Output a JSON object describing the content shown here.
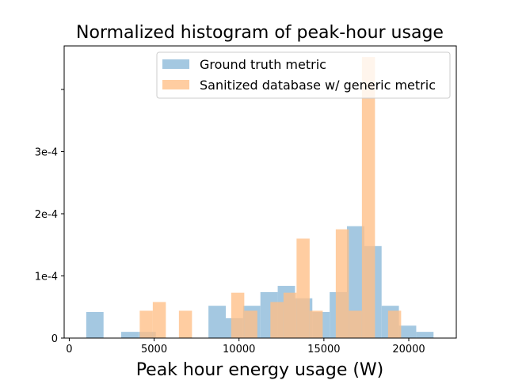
{
  "chart_data": {
    "type": "bar",
    "title": "Normalized histogram of peak-hour usage",
    "xlabel": "Peak hour energy usage (W)",
    "ylabel": "",
    "xlim": [
      -300,
      22800
    ],
    "ylim": [
      0,
      0.00047
    ],
    "xticks": [
      0,
      5000,
      10000,
      15000,
      20000
    ],
    "xtick_labels": [
      "0",
      "5000",
      "10000",
      "15000",
      "20000"
    ],
    "yticks": [
      0,
      0.0001,
      0.0002,
      0.0003,
      0.0004
    ],
    "ytick_labels": [
      "0",
      "1e-4",
      "2e-4",
      "3e-4",
      ""
    ],
    "legend": {
      "position": "upper-right",
      "entries": [
        "Ground truth metric",
        "Sanitized database w/ generic metric"
      ]
    },
    "series": [
      {
        "name": "Ground truth metric",
        "color": "#a4c8e1",
        "opacity": 1,
        "bins": [
          {
            "x0": 1000,
            "x1": 2020,
            "value": 4.2e-05
          },
          {
            "x0": 3060,
            "x1": 4080,
            "value": 1e-05
          },
          {
            "x0": 4080,
            "x1": 5100,
            "value": 1e-05
          },
          {
            "x0": 8200,
            "x1": 9220,
            "value": 5.2e-05
          },
          {
            "x0": 9220,
            "x1": 10240,
            "value": 3.2e-05
          },
          {
            "x0": 10240,
            "x1": 11260,
            "value": 5.2e-05
          },
          {
            "x0": 11260,
            "x1": 12280,
            "value": 7.4e-05
          },
          {
            "x0": 12280,
            "x1": 13300,
            "value": 8.4e-05
          },
          {
            "x0": 13300,
            "x1": 14320,
            "value": 6.4e-05
          },
          {
            "x0": 14320,
            "x1": 15340,
            "value": 4.2e-05
          },
          {
            "x0": 15340,
            "x1": 16360,
            "value": 7.4e-05
          },
          {
            "x0": 16360,
            "x1": 17380,
            "value": 0.00018
          },
          {
            "x0": 17380,
            "x1": 18400,
            "value": 0.000148
          },
          {
            "x0": 18400,
            "x1": 19420,
            "value": 5.2e-05
          },
          {
            "x0": 19420,
            "x1": 20440,
            "value": 2e-05
          },
          {
            "x0": 20440,
            "x1": 21460,
            "value": 1e-05
          }
        ]
      },
      {
        "name": "Sanitized database w/ generic metric",
        "color": "#ffbf86",
        "opacity": 0.78,
        "bins": [
          {
            "x0": 4150,
            "x1": 4920,
            "value": 4.4e-05
          },
          {
            "x0": 4920,
            "x1": 5690,
            "value": 5.8e-05
          },
          {
            "x0": 6460,
            "x1": 7230,
            "value": 4.4e-05
          },
          {
            "x0": 9540,
            "x1": 10310,
            "value": 7.3e-05
          },
          {
            "x0": 10310,
            "x1": 11080,
            "value": 4.4e-05
          },
          {
            "x0": 11850,
            "x1": 12620,
            "value": 5.8e-05
          },
          {
            "x0": 12620,
            "x1": 13390,
            "value": 7.3e-05
          },
          {
            "x0": 13390,
            "x1": 14160,
            "value": 0.00016
          },
          {
            "x0": 14160,
            "x1": 14930,
            "value": 4.4e-05
          },
          {
            "x0": 15700,
            "x1": 16470,
            "value": 0.000175
          },
          {
            "x0": 16470,
            "x1": 17240,
            "value": 4.4e-05
          },
          {
            "x0": 17240,
            "x1": 18010,
            "value": 0.000452
          },
          {
            "x0": 18780,
            "x1": 19550,
            "value": 4.4e-05
          }
        ]
      }
    ]
  }
}
